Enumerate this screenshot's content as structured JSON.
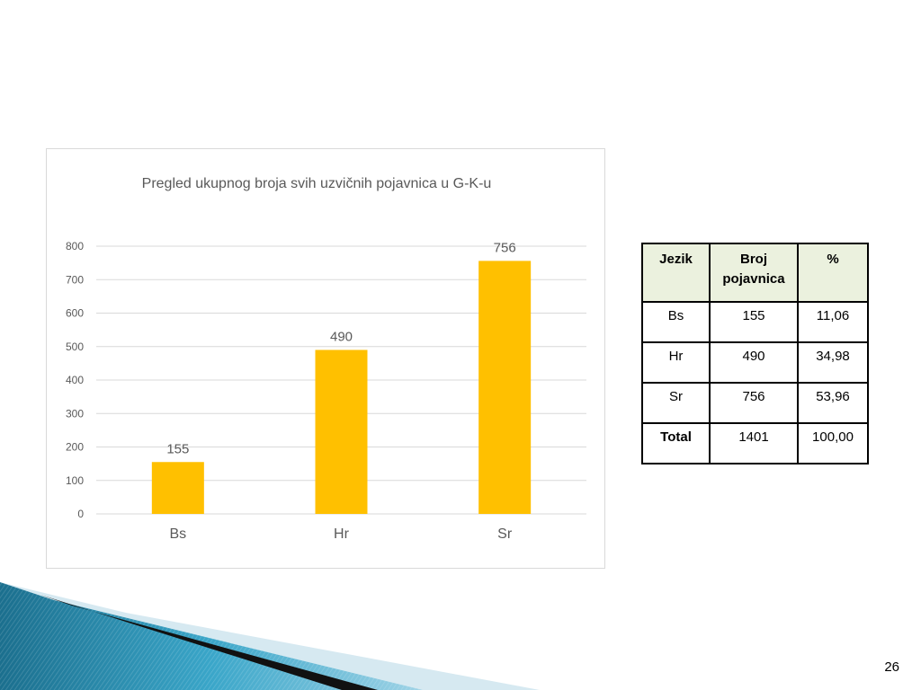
{
  "chart_data": {
    "type": "bar",
    "title": "Pregled ukupnog broja svih uzvičnih pojavnica u G-K-u",
    "categories": [
      "Bs",
      "Hr",
      "Sr"
    ],
    "values": [
      155,
      490,
      756
    ],
    "ylim": [
      0,
      800
    ],
    "yticks": [
      0,
      100,
      200,
      300,
      400,
      500,
      600,
      700,
      800
    ],
    "grid": true,
    "bar_color": "#ffc000"
  },
  "table": {
    "headers": [
      "Jezik",
      "Broj pojavnica",
      "%"
    ],
    "rows": [
      [
        "Bs",
        "155",
        "11,06"
      ],
      [
        "Hr",
        "490",
        "34,98"
      ],
      [
        "Sr",
        "756",
        "53,96"
      ],
      [
        "Total",
        "1401",
        "100,00"
      ]
    ]
  },
  "page_number": "26"
}
